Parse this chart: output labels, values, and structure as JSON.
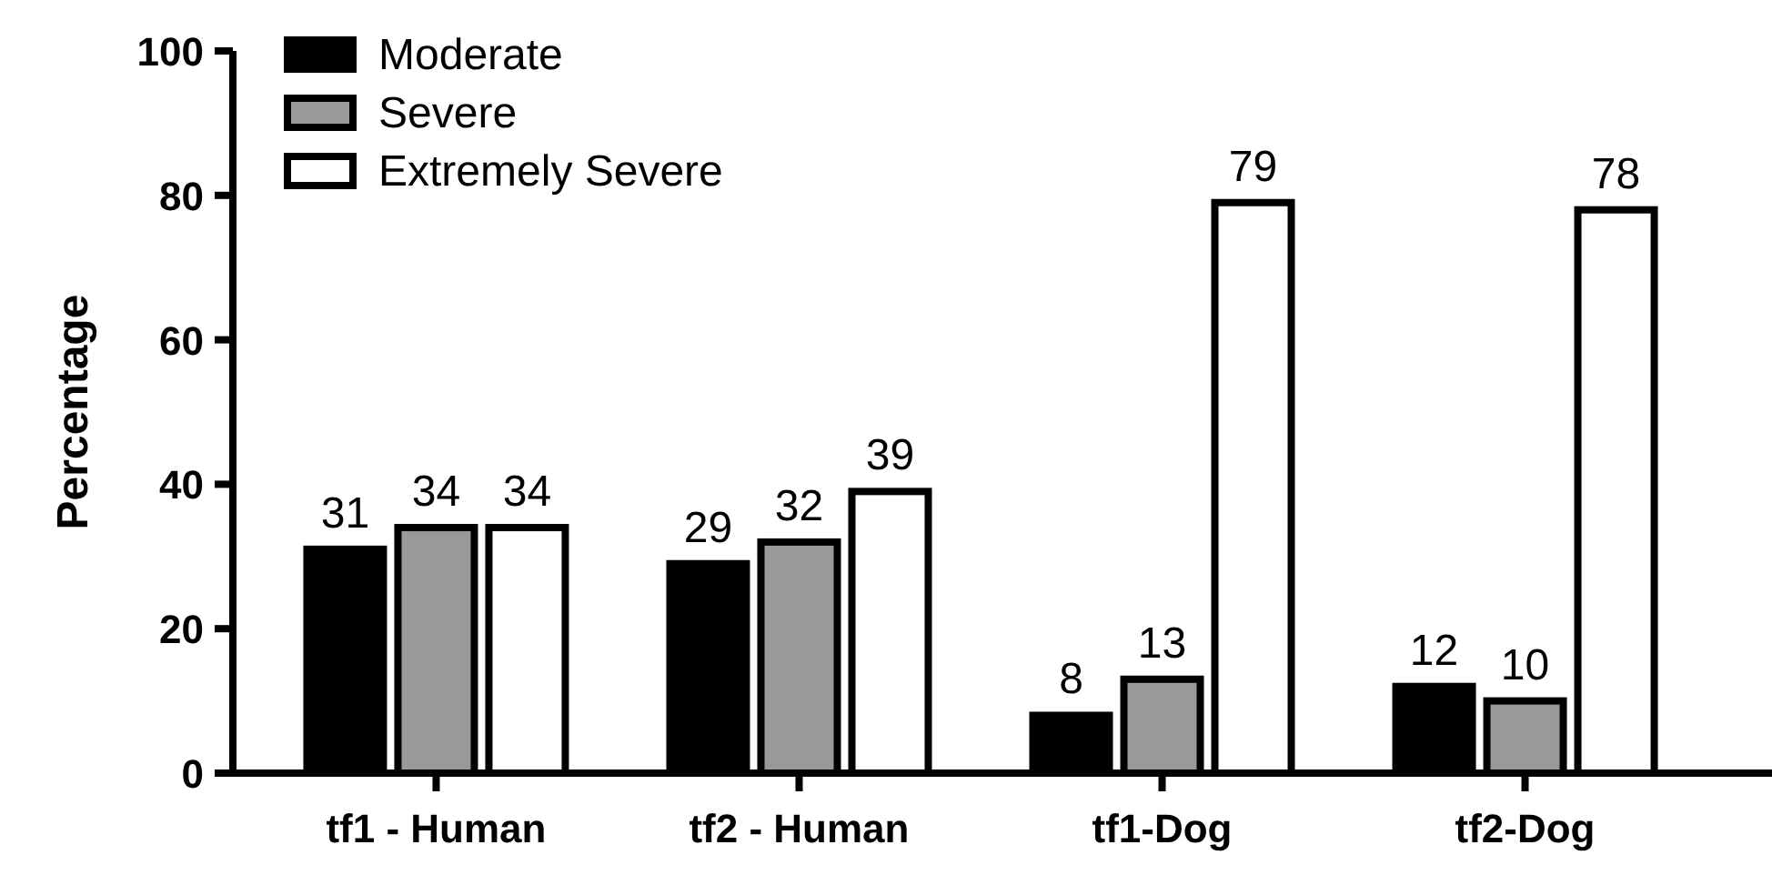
{
  "chart_data": {
    "type": "bar",
    "ylabel": "Percentage",
    "categories": [
      "tf1 - Human",
      "tf2 - Human",
      "tf1-Dog",
      "tf2-Dog"
    ],
    "series": [
      {
        "name": "Moderate",
        "color": "#000000",
        "values": [
          31,
          29,
          8,
          12
        ]
      },
      {
        "name": "Severe",
        "color": "#999999",
        "values": [
          34,
          32,
          13,
          10
        ]
      },
      {
        "name": "Extremely Severe",
        "color": "#ffffff",
        "values": [
          34,
          39,
          79,
          78
        ]
      }
    ],
    "ylim": [
      0,
      100
    ],
    "yticks": [
      0,
      20,
      40,
      60,
      80,
      100
    ],
    "data_labels": true,
    "legend": "top left",
    "grid": false
  }
}
